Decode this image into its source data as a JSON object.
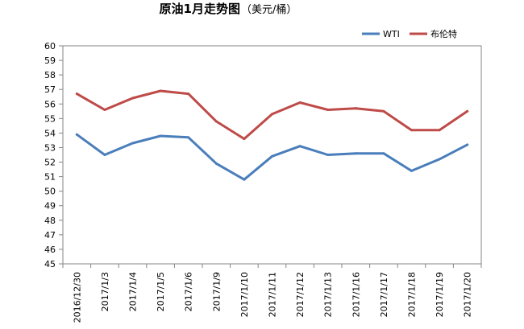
{
  "chart_data": {
    "type": "line",
    "title": "原油1月走势图",
    "subtitle": "（美元/桶）",
    "xlabel": "",
    "ylabel": "",
    "categories": [
      "2016/12/30",
      "2017/1/3",
      "2017/1/4",
      "2017/1/5",
      "2017/1/6",
      "2017/1/9",
      "2017/1/10",
      "2017/1/11",
      "2017/1/12",
      "2017/1/13",
      "2017/1/16",
      "2017/1/17",
      "2017/1/18",
      "2017/1/19",
      "2017/1/20"
    ],
    "series": [
      {
        "name": "WTI",
        "color": "#4a7ebb",
        "values": [
          53.9,
          52.5,
          53.3,
          53.8,
          53.7,
          51.9,
          50.8,
          52.4,
          53.1,
          52.5,
          52.6,
          52.6,
          51.4,
          52.2,
          53.2
        ]
      },
      {
        "name": "布伦特",
        "color": "#be4b48",
        "values": [
          56.7,
          55.6,
          56.4,
          56.9,
          56.7,
          54.8,
          53.6,
          55.3,
          56.1,
          55.6,
          55.7,
          55.5,
          54.2,
          54.2,
          55.5
        ]
      }
    ],
    "ylim": [
      45,
      60
    ],
    "ytick_step": 1,
    "grid": false,
    "legend_position": "top-right"
  }
}
